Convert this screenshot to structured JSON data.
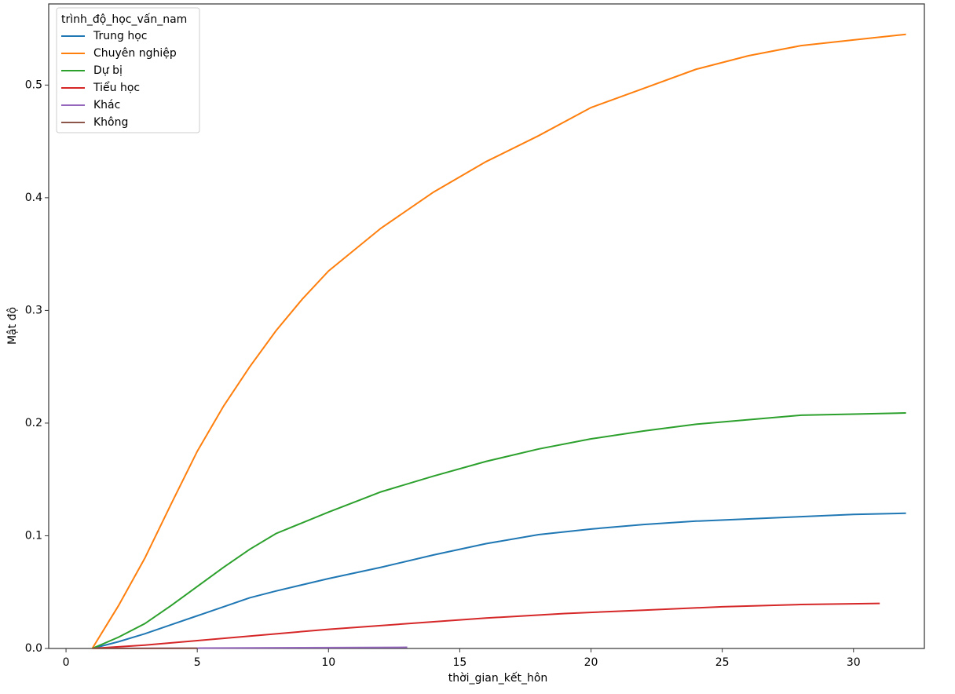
{
  "chart_data": {
    "type": "line",
    "x_label": "thời_gian_kết_hôn",
    "y_label": "Mật độ",
    "legend_title": "trình_độ_học_vấn_nam",
    "legend": "upper left",
    "xlim": [
      -0.66,
      32.7
    ],
    "ylim": [
      0,
      0.572
    ],
    "xticks": [
      0,
      5,
      10,
      15,
      20,
      25,
      30
    ],
    "yticks": [
      {
        "value": 0,
        "label": "0.0"
      },
      0.1,
      0.2,
      0.3,
      0.4,
      0.5
    ],
    "series": [
      {
        "name": "Trung học",
        "color": "#1f77b4",
        "x": [
          1,
          2,
          3,
          4,
          5,
          6,
          7,
          8,
          10,
          12,
          14,
          16,
          18,
          20,
          22,
          24,
          26,
          28,
          30,
          32
        ],
        "values": [
          0,
          0.006,
          0.013,
          0.021,
          0.029,
          0.037,
          0.045,
          0.051,
          0.062,
          0.072,
          0.083,
          0.093,
          0.101,
          0.106,
          0.11,
          0.113,
          0.115,
          0.117,
          0.119,
          0.12
        ]
      },
      {
        "name": "Chuyên nghiệp",
        "color": "#ff7f0e",
        "x": [
          1,
          2,
          3,
          4,
          5,
          6,
          7,
          8,
          9,
          10,
          12,
          14,
          16,
          18,
          20,
          22,
          24,
          26,
          28,
          30,
          32
        ],
        "values": [
          0,
          0.038,
          0.08,
          0.128,
          0.175,
          0.215,
          0.25,
          0.282,
          0.31,
          0.335,
          0.373,
          0.405,
          0.432,
          0.455,
          0.48,
          0.497,
          0.514,
          0.526,
          0.535,
          0.54,
          0.545
        ]
      },
      {
        "name": "Dự bị",
        "color": "#2ca02c",
        "x": [
          1,
          2,
          3,
          4,
          5,
          6,
          7,
          8,
          10,
          12,
          14,
          16,
          18,
          20,
          22,
          24,
          26,
          28,
          30,
          32
        ],
        "values": [
          0,
          0.01,
          0.022,
          0.038,
          0.055,
          0.072,
          0.088,
          0.102,
          0.121,
          0.139,
          0.153,
          0.166,
          0.177,
          0.186,
          0.193,
          0.199,
          0.203,
          0.207,
          0.208,
          0.209
        ]
      },
      {
        "name": "Tiểu học",
        "color": "#d62728",
        "x": [
          1,
          3,
          5,
          7,
          10,
          13,
          16,
          19,
          22,
          25,
          28,
          31
        ],
        "values": [
          0,
          0.003,
          0.007,
          0.011,
          0.017,
          0.022,
          0.027,
          0.031,
          0.034,
          0.037,
          0.039,
          0.04
        ]
      },
      {
        "name": "Khác",
        "color": "#9467bd",
        "x": [
          1,
          5,
          9,
          13
        ],
        "values": [
          0,
          0.0003,
          0.0007,
          0.001
        ]
      },
      {
        "name": "Không",
        "color": "#8c564b",
        "x": [
          1,
          3,
          5
        ],
        "values": [
          0,
          0.0001,
          0.0002
        ]
      }
    ]
  }
}
